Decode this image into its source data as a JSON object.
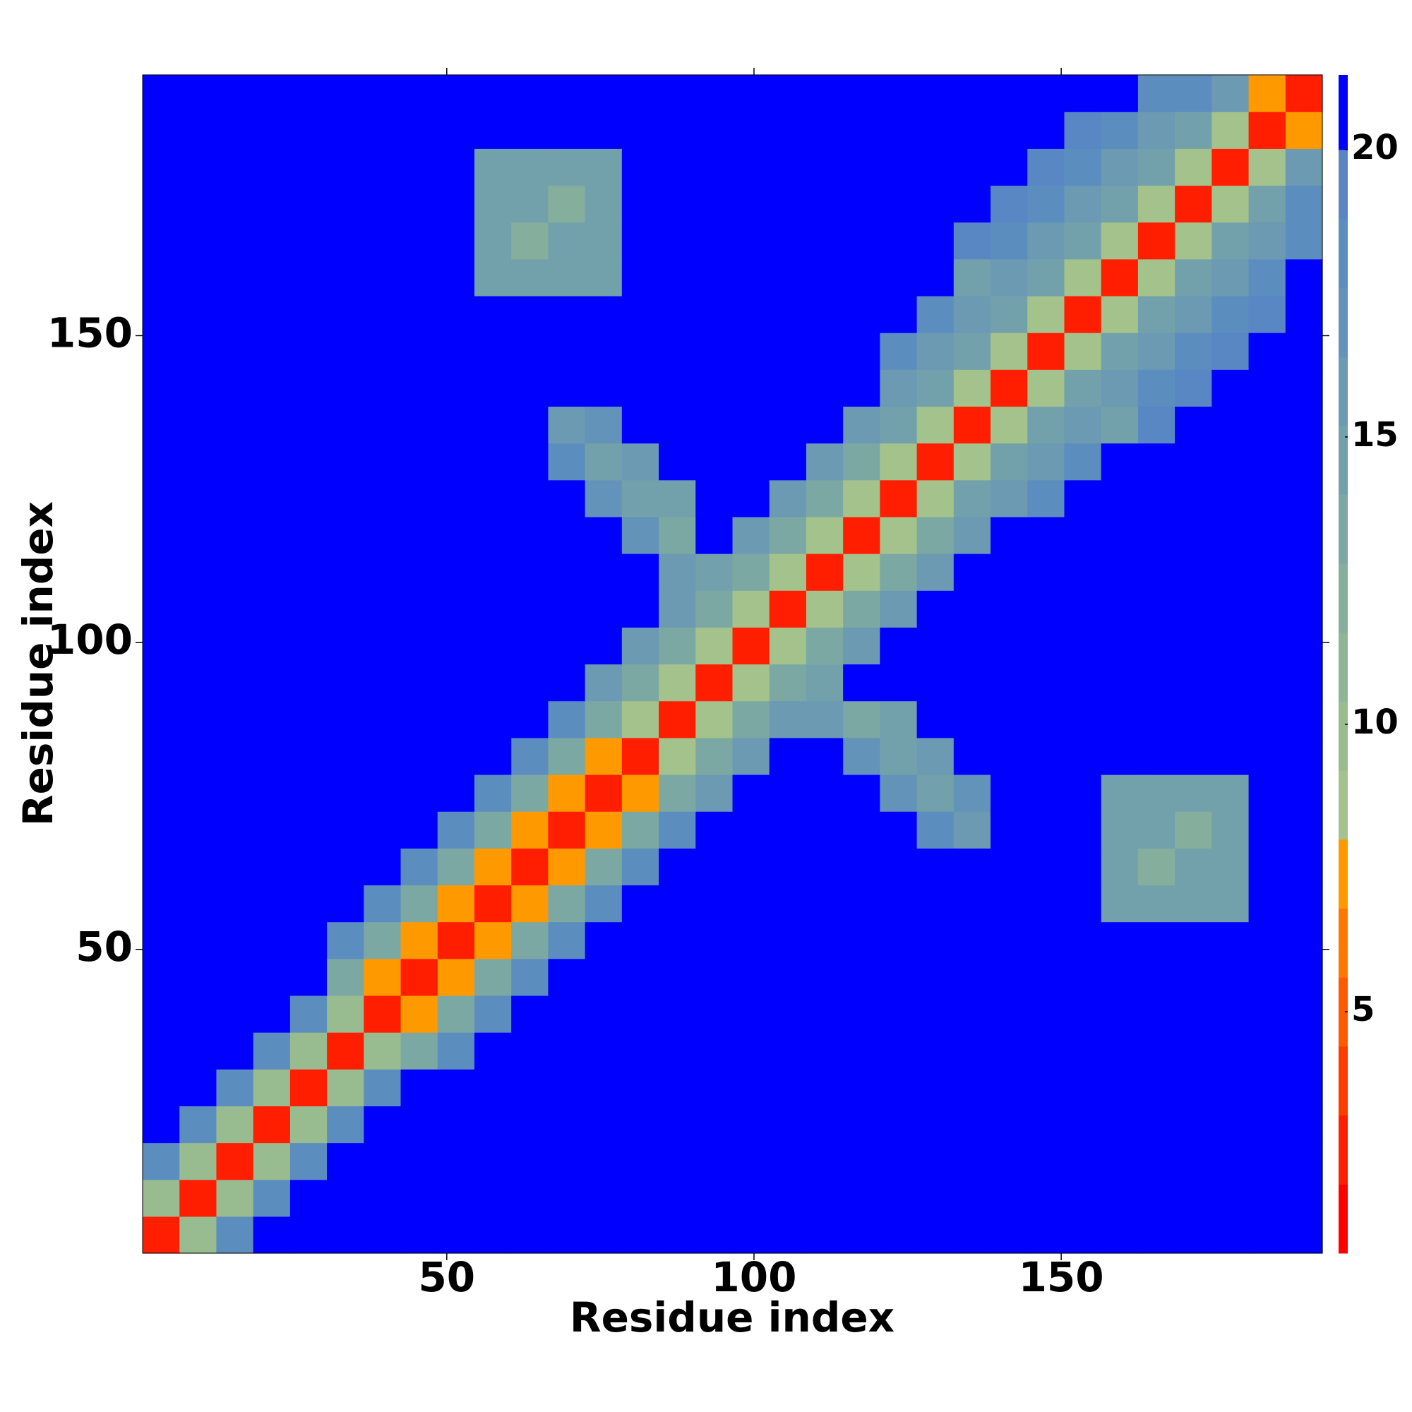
{
  "chart_data": {
    "type": "heatmap",
    "xlabel": "Residue index",
    "ylabel": "Residue index",
    "xlim": [
      0.5,
      192.5
    ],
    "ylim": [
      0.5,
      192.5
    ],
    "xticks": [
      50,
      100,
      150
    ],
    "yticks": [
      50,
      100,
      150
    ],
    "colorbar": {
      "zlim": [
        0.8,
        21.3
      ],
      "ticks": [
        5,
        10,
        15,
        20
      ],
      "levels": [
        0.8,
        2.0,
        3.2,
        4.4,
        5.6,
        6.8,
        8.0,
        9.2,
        10.4,
        11.6,
        12.8,
        14.0,
        15.2,
        16.4,
        17.6,
        18.8,
        20.0,
        21.3
      ],
      "colors": [
        "#ff0000",
        "#ff1e00",
        "#ff3c00",
        "#ff5a00",
        "#ff7800",
        "#ff9900",
        "#a3c28c",
        "#98bb90",
        "#8eb596",
        "#85ae9d",
        "#7ca8a4",
        "#73a1ab",
        "#6b9ab2",
        "#6393b9",
        "#5c8dbf",
        "#5887c4",
        "#0000ff"
      ]
    },
    "z": [
      [
        3,
        10,
        18,
        21,
        21,
        21,
        21,
        21,
        21,
        21,
        21,
        21,
        21,
        21,
        21,
        21,
        21,
        21,
        21,
        21,
        21,
        21,
        21,
        21,
        21,
        21,
        21,
        21,
        21,
        21,
        21,
        21
      ],
      [
        10,
        3,
        10,
        18,
        21,
        21,
        21,
        21,
        21,
        21,
        21,
        21,
        21,
        21,
        21,
        21,
        21,
        21,
        21,
        21,
        21,
        21,
        21,
        21,
        21,
        21,
        21,
        21,
        21,
        21,
        21,
        21
      ],
      [
        18,
        10,
        3,
        10,
        18,
        21,
        21,
        21,
        21,
        21,
        21,
        21,
        21,
        21,
        21,
        21,
        21,
        21,
        21,
        21,
        21,
        21,
        21,
        21,
        21,
        21,
        21,
        21,
        21,
        21,
        21,
        21
      ],
      [
        21,
        18,
        10,
        3,
        10,
        18,
        21,
        21,
        21,
        21,
        21,
        21,
        21,
        21,
        21,
        21,
        21,
        21,
        21,
        21,
        21,
        21,
        21,
        21,
        21,
        21,
        21,
        21,
        21,
        21,
        21,
        21
      ],
      [
        21,
        21,
        18,
        10,
        3,
        10,
        18,
        21,
        21,
        21,
        21,
        21,
        21,
        21,
        21,
        21,
        21,
        21,
        21,
        21,
        21,
        21,
        21,
        21,
        21,
        21,
        21,
        21,
        21,
        21,
        21,
        21
      ],
      [
        21,
        21,
        21,
        18,
        10,
        3,
        10,
        13,
        18,
        21,
        21,
        21,
        21,
        21,
        21,
        21,
        21,
        21,
        21,
        21,
        21,
        21,
        21,
        21,
        21,
        21,
        21,
        21,
        21,
        21,
        21,
        21
      ],
      [
        21,
        21,
        21,
        21,
        18,
        10,
        3,
        7,
        13,
        18,
        21,
        21,
        21,
        21,
        21,
        21,
        21,
        21,
        21,
        21,
        21,
        21,
        21,
        21,
        21,
        21,
        21,
        21,
        21,
        21,
        21,
        21
      ],
      [
        21,
        21,
        21,
        21,
        21,
        13,
        7,
        3,
        7,
        13,
        18,
        21,
        21,
        21,
        21,
        21,
        21,
        21,
        21,
        21,
        21,
        21,
        21,
        21,
        21,
        21,
        21,
        21,
        21,
        21,
        21,
        21
      ],
      [
        21,
        21,
        21,
        21,
        21,
        18,
        13,
        7,
        3,
        7,
        13,
        18,
        21,
        21,
        21,
        21,
        21,
        21,
        21,
        21,
        21,
        21,
        21,
        21,
        21,
        21,
        21,
        21,
        21,
        21,
        21,
        21
      ],
      [
        21,
        21,
        21,
        21,
        21,
        21,
        18,
        13,
        7,
        3,
        7,
        13,
        18,
        21,
        21,
        21,
        21,
        21,
        21,
        21,
        21,
        21,
        21,
        21,
        21,
        21,
        15,
        15,
        15,
        15,
        21,
        21
      ],
      [
        21,
        21,
        21,
        21,
        21,
        21,
        21,
        18,
        13,
        7,
        3,
        7,
        13,
        18,
        21,
        21,
        21,
        21,
        21,
        21,
        21,
        21,
        21,
        21,
        21,
        21,
        15,
        12,
        14,
        15,
        21,
        21
      ],
      [
        21,
        21,
        21,
        21,
        21,
        21,
        21,
        21,
        18,
        13,
        7,
        3,
        7,
        13,
        18,
        21,
        21,
        21,
        21,
        21,
        21,
        18,
        16,
        21,
        21,
        21,
        15,
        15,
        12,
        15,
        21,
        21
      ],
      [
        21,
        21,
        21,
        21,
        21,
        21,
        21,
        21,
        21,
        18,
        13,
        7,
        3,
        7,
        13,
        16,
        21,
        21,
        21,
        21,
        17,
        15,
        17,
        21,
        21,
        21,
        15,
        15,
        15,
        15,
        21,
        21
      ],
      [
        21,
        21,
        21,
        21,
        21,
        21,
        21,
        21,
        21,
        21,
        18,
        13,
        7,
        3,
        9,
        13,
        16,
        21,
        21,
        17,
        14,
        16,
        21,
        21,
        21,
        21,
        21,
        21,
        21,
        21,
        21,
        21
      ],
      [
        21,
        21,
        21,
        21,
        21,
        21,
        21,
        21,
        21,
        21,
        21,
        18,
        13,
        9,
        3,
        9,
        13,
        16,
        16,
        13,
        15,
        21,
        21,
        21,
        21,
        21,
        21,
        21,
        21,
        21,
        21,
        21
      ],
      [
        21,
        21,
        21,
        21,
        21,
        21,
        21,
        21,
        21,
        21,
        21,
        21,
        16,
        13,
        9,
        3,
        9,
        13,
        14,
        21,
        21,
        21,
        21,
        21,
        21,
        21,
        21,
        21,
        21,
        21,
        21,
        21
      ],
      [
        21,
        21,
        21,
        21,
        21,
        21,
        21,
        21,
        21,
        21,
        21,
        21,
        21,
        16,
        13,
        9,
        3,
        9,
        13,
        16,
        21,
        21,
        21,
        21,
        21,
        21,
        21,
        21,
        21,
        21,
        21,
        21
      ],
      [
        21,
        21,
        21,
        21,
        21,
        21,
        21,
        21,
        21,
        21,
        21,
        21,
        21,
        21,
        16,
        13,
        9,
        3,
        9,
        13,
        16,
        21,
        21,
        21,
        21,
        21,
        21,
        21,
        21,
        21,
        21,
        21
      ],
      [
        21,
        21,
        21,
        21,
        21,
        21,
        21,
        21,
        21,
        21,
        21,
        21,
        21,
        21,
        16,
        14,
        13,
        9,
        3,
        9,
        13,
        16,
        21,
        21,
        21,
        21,
        21,
        21,
        21,
        21,
        21,
        21
      ],
      [
        21,
        21,
        21,
        21,
        21,
        21,
        21,
        21,
        21,
        21,
        21,
        21,
        21,
        17,
        13,
        21,
        16,
        13,
        9,
        3,
        9,
        13,
        16,
        21,
        21,
        21,
        21,
        21,
        21,
        21,
        21,
        21
      ],
      [
        21,
        21,
        21,
        21,
        21,
        21,
        21,
        21,
        21,
        21,
        21,
        21,
        17,
        14,
        15,
        21,
        21,
        16,
        13,
        9,
        3,
        9,
        14,
        16,
        18,
        21,
        21,
        21,
        21,
        21,
        21,
        21
      ],
      [
        21,
        21,
        21,
        21,
        21,
        21,
        21,
        21,
        21,
        21,
        21,
        18,
        15,
        16,
        21,
        21,
        21,
        21,
        16,
        13,
        9,
        3,
        9,
        14,
        16,
        18,
        21,
        21,
        21,
        21,
        21,
        21
      ],
      [
        21,
        21,
        21,
        21,
        21,
        21,
        21,
        21,
        21,
        21,
        21,
        16,
        17,
        21,
        21,
        21,
        21,
        21,
        21,
        16,
        14,
        9,
        3,
        8,
        14,
        16,
        15,
        19,
        21,
        21,
        21,
        21
      ],
      [
        21,
        21,
        21,
        21,
        21,
        21,
        21,
        21,
        21,
        21,
        21,
        21,
        21,
        21,
        21,
        21,
        21,
        21,
        21,
        21,
        16,
        14,
        8,
        3,
        8,
        14,
        16,
        18,
        19,
        21,
        21,
        21
      ],
      [
        21,
        21,
        21,
        21,
        21,
        21,
        21,
        21,
        21,
        21,
        21,
        21,
        21,
        21,
        21,
        21,
        21,
        21,
        21,
        21,
        18,
        16,
        14,
        8,
        3,
        8,
        14,
        16,
        18,
        19,
        21,
        21
      ],
      [
        21,
        21,
        21,
        21,
        21,
        21,
        21,
        21,
        21,
        21,
        21,
        21,
        21,
        21,
        21,
        21,
        21,
        21,
        21,
        21,
        21,
        18,
        16,
        14,
        8,
        3,
        8,
        14,
        16,
        18,
        19,
        21
      ],
      [
        21,
        21,
        21,
        21,
        21,
        21,
        21,
        21,
        21,
        15,
        15,
        15,
        15,
        21,
        21,
        21,
        21,
        21,
        21,
        21,
        21,
        21,
        15,
        16,
        14,
        8,
        3,
        8,
        14,
        16,
        18,
        21
      ],
      [
        21,
        21,
        21,
        21,
        21,
        21,
        21,
        21,
        21,
        15,
        12,
        15,
        15,
        21,
        21,
        21,
        21,
        21,
        21,
        21,
        21,
        21,
        19,
        18,
        16,
        14,
        8,
        3,
        8,
        14,
        16,
        18
      ],
      [
        21,
        21,
        21,
        21,
        21,
        21,
        21,
        21,
        21,
        15,
        14,
        12,
        15,
        21,
        21,
        21,
        21,
        21,
        21,
        21,
        21,
        21,
        21,
        19,
        18,
        16,
        14,
        8,
        3,
        8,
        14,
        18
      ],
      [
        21,
        21,
        21,
        21,
        21,
        21,
        21,
        21,
        21,
        15,
        15,
        15,
        15,
        21,
        21,
        21,
        21,
        21,
        21,
        21,
        21,
        21,
        21,
        21,
        19,
        18,
        16,
        14,
        8,
        3,
        8,
        16
      ],
      [
        21,
        21,
        21,
        21,
        21,
        21,
        21,
        21,
        21,
        21,
        21,
        21,
        21,
        21,
        21,
        21,
        21,
        21,
        21,
        21,
        21,
        21,
        21,
        21,
        21,
        19,
        18,
        16,
        14,
        8,
        3,
        7
      ],
      [
        21,
        21,
        21,
        21,
        21,
        21,
        21,
        21,
        21,
        21,
        21,
        21,
        21,
        21,
        21,
        21,
        21,
        21,
        21,
        21,
        21,
        21,
        21,
        21,
        21,
        21,
        21,
        18,
        18,
        16,
        7,
        3
      ]
    ]
  }
}
